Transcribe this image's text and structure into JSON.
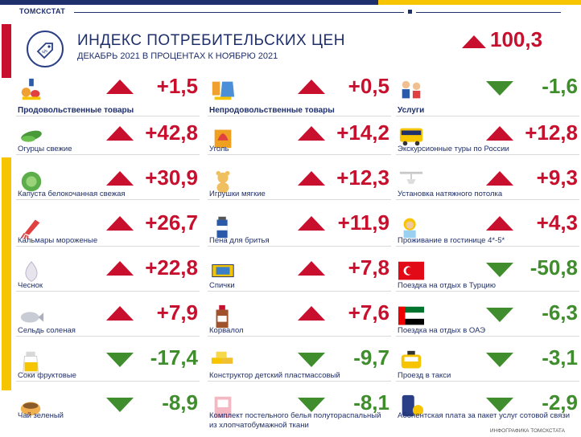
{
  "brand": "ТОМСКСТАТ",
  "header": {
    "title": "ИНДЕКС ПОТРЕБИТЕЛЬСКИХ ЦЕН",
    "subtitle": "ДЕКАБРЬ 2021 В ПРОЦЕНТАХ  К НОЯБРЮ 2021",
    "value": "100,3",
    "direction": "up"
  },
  "colors": {
    "up": "#c8102e",
    "down": "#3f8d2c",
    "navy": "#1f2f6b",
    "yellow": "#f7c400"
  },
  "columns": [
    {
      "items": [
        {
          "label": "Продовольственные товары",
          "value": "+1,5",
          "dir": "up",
          "icon": "groceries-icon",
          "category": true
        },
        {
          "label": "Огурцы свежие",
          "value": "+42,8",
          "dir": "up",
          "icon": "cucumber-icon"
        },
        {
          "label": "Капуста белокочанная свежая",
          "value": "+30,9",
          "dir": "up",
          "icon": "cabbage-icon"
        },
        {
          "label": "Кальмары мороженые",
          "value": "+26,7",
          "dir": "up",
          "icon": "squid-icon"
        },
        {
          "label": "Чеснок",
          "value": "+22,8",
          "dir": "up",
          "icon": "garlic-icon"
        },
        {
          "label": "Сельдь соленая",
          "value": "+7,9",
          "dir": "up",
          "icon": "herring-icon"
        },
        {
          "label": "Соки фруктовые",
          "value": "-17,4",
          "dir": "down",
          "icon": "juice-icon"
        },
        {
          "label": "Чай зеленый",
          "value": "-8,9",
          "dir": "down",
          "icon": "tea-icon"
        }
      ]
    },
    {
      "items": [
        {
          "label": "Непродовольственные товары",
          "value": "+0,5",
          "dir": "up",
          "icon": "nonfood-icon",
          "category": true
        },
        {
          "label": "Уголь",
          "value": "+14,2",
          "dir": "up",
          "icon": "coal-icon"
        },
        {
          "label": "Игрушки мягкие",
          "value": "+12,3",
          "dir": "up",
          "icon": "teddy-bear-icon"
        },
        {
          "label": "Пена для бритья",
          "value": "+11,9",
          "dir": "up",
          "icon": "shaving-foam-icon"
        },
        {
          "label": "Спички",
          "value": "+7,8",
          "dir": "up",
          "icon": "matches-icon"
        },
        {
          "label": "Корвалол",
          "value": "+7,6",
          "dir": "up",
          "icon": "medicine-icon"
        },
        {
          "label": "Конструктор детский пластмассовый",
          "value": "-9,7",
          "dir": "down",
          "icon": "building-blocks-icon"
        },
        {
          "label": "Комплект постельного белья полутораспальный",
          "label2": "из хлопчатобумажной ткани",
          "value": "-8,1",
          "dir": "down",
          "icon": "bedding-icon"
        }
      ]
    },
    {
      "items": [
        {
          "label": "Услуги",
          "value": "-1,6",
          "dir": "down",
          "icon": "services-icon",
          "category": true
        },
        {
          "label": "Экскурсионные туры по России",
          "value": "+12,8",
          "dir": "up",
          "icon": "bus-icon"
        },
        {
          "label": "Установка натяжного потолка",
          "value": "+9,3",
          "dir": "up",
          "icon": "ceiling-icon"
        },
        {
          "label": "Проживание в гостинице 4*-5*",
          "value": "+4,3",
          "dir": "up",
          "icon": "hotel-icon"
        },
        {
          "label": "Поездка на отдых в Турцию",
          "value": "-50,8",
          "dir": "down",
          "icon": "turkey-flag-icon"
        },
        {
          "label": "Поездка на отдых в ОАЭ",
          "value": "-6,3",
          "dir": "down",
          "icon": "uae-flag-icon"
        },
        {
          "label": "Проезд в такси",
          "value": "-3,1",
          "dir": "down",
          "icon": "taxi-icon"
        },
        {
          "label": "Абонентская плата за пакет услуг сотовой связи",
          "value": "-2,9",
          "dir": "down",
          "icon": "phone-icon"
        }
      ]
    }
  ],
  "footer": "ИНФОГРАФИКА ТОМСКСТАТА"
}
